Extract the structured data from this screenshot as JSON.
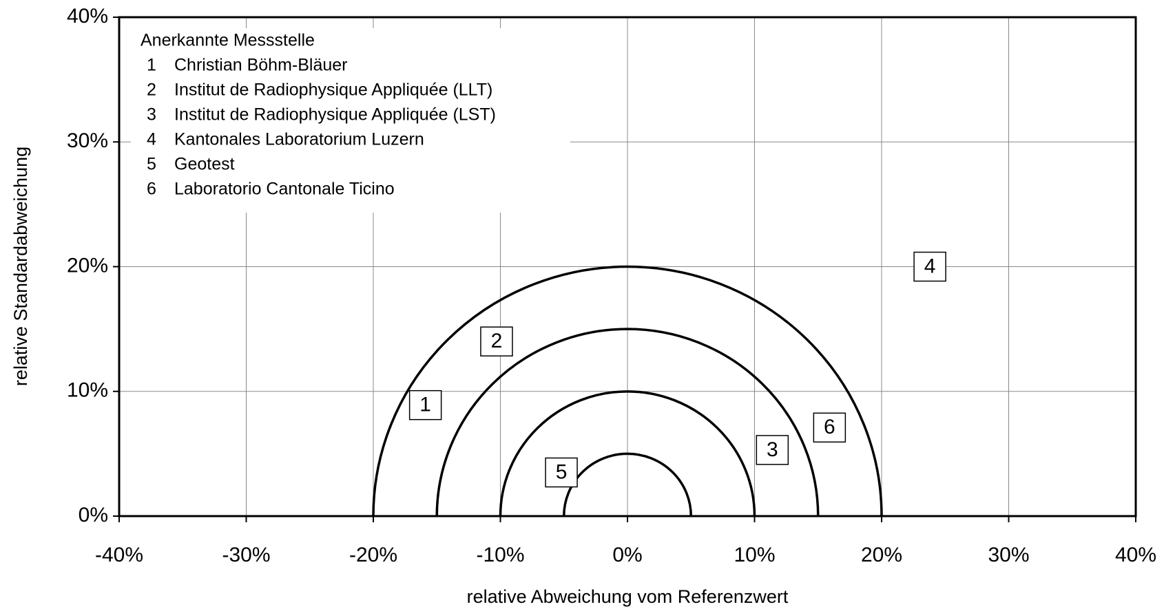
{
  "chart_data": {
    "type": "scatter",
    "x_label": "relative Abweichung vom Referenzwert",
    "y_label": "relative Standardabweichung",
    "legend_title": "Anerkannte  Messstelle",
    "points": [
      {
        "label": "1",
        "name": "Christian Böhm-Bläuer",
        "x": -15.9,
        "y": 8.9
      },
      {
        "label": "2",
        "name": "Institut de Radiophysique Appliquée (LLT)",
        "x": -10.3,
        "y": 14.0
      },
      {
        "label": "3",
        "name": "Institut de Radiophysique Appliquée (LST)",
        "x": 11.4,
        "y": 5.3
      },
      {
        "label": "4",
        "name": "Kantonales Laboratorium Luzern",
        "x": 23.8,
        "y": 20.0
      },
      {
        "label": "5",
        "name": "Geotest",
        "x": -5.2,
        "y": 3.5
      },
      {
        "label": "6",
        "name": "Laboratorio Cantonale Ticino",
        "x": 15.9,
        "y": 7.1
      }
    ],
    "circles": [
      5,
      10,
      15,
      20
    ],
    "xlim": [
      -40,
      40
    ],
    "ylim": [
      0,
      40
    ],
    "xticks": [
      {
        "value": -40,
        "label": "-40%"
      },
      {
        "value": -30,
        "label": "-30%"
      },
      {
        "value": -20,
        "label": "-20%"
      },
      {
        "value": -10,
        "label": "-10%"
      },
      {
        "value": 0,
        "label": "0%"
      },
      {
        "value": 10,
        "label": "10%"
      },
      {
        "value": 20,
        "label": "20%"
      },
      {
        "value": 30,
        "label": "30%"
      },
      {
        "value": 40,
        "label": "40%"
      }
    ],
    "yticks": [
      {
        "value": 0,
        "label": "0%"
      },
      {
        "value": 10,
        "label": "10%"
      },
      {
        "value": 20,
        "label": "20%"
      },
      {
        "value": 30,
        "label": "30%"
      },
      {
        "value": 40,
        "label": "40%"
      }
    ],
    "grid": true
  }
}
